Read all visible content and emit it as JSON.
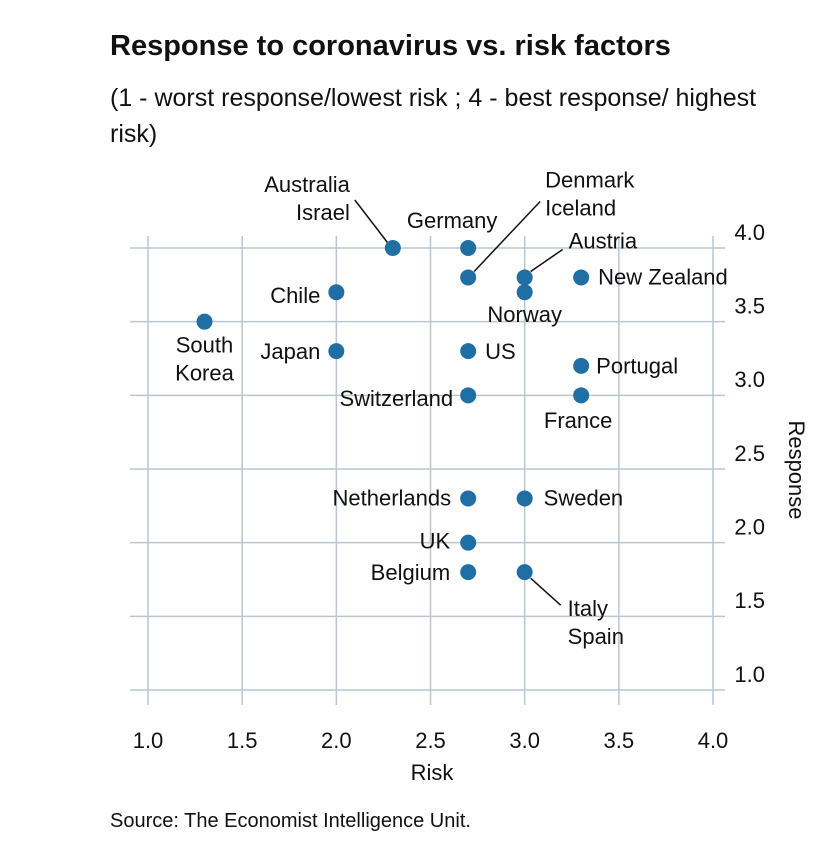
{
  "chart_data": {
    "type": "scatter",
    "title": "Response to coronavirus vs. risk factors",
    "subtitle": "(1 - worst response/lowest risk ; 4 - best response/ highest risk)",
    "x_label": "Risk",
    "y_label": "Response",
    "source": "Source: The Economist Intelligence Unit.",
    "color": "#1f6fa5",
    "grid": true,
    "xlim": [
      1.0,
      4.0
    ],
    "ylim": [
      1.0,
      4.0
    ],
    "xticks": [
      {
        "value": 1.0,
        "label": "1.0"
      },
      {
        "value": 1.5,
        "label": "1.5"
      },
      {
        "value": 2.0,
        "label": "2.0"
      },
      {
        "value": 2.5,
        "label": "2.5"
      },
      {
        "value": 3.0,
        "label": "3.0"
      },
      {
        "value": 3.5,
        "label": "3.5"
      },
      {
        "value": 4.0,
        "label": "4.0"
      }
    ],
    "yticks": [
      {
        "value": 1.0,
        "label": "1.0"
      },
      {
        "value": 1.5,
        "label": "1.5"
      },
      {
        "value": 2.0,
        "label": "2.0"
      },
      {
        "value": 2.5,
        "label": "2.5"
      },
      {
        "value": 3.0,
        "label": "3.0"
      },
      {
        "value": 3.5,
        "label": "3.5"
      },
      {
        "value": 4.0,
        "label": "4.0"
      }
    ],
    "point_labels": [
      [
        "Australia",
        "Israel"
      ],
      [
        "Germany"
      ],
      [
        "Denmark",
        "Iceland"
      ],
      [
        "Austria"
      ],
      [
        "New Zealand"
      ],
      [
        "Norway"
      ],
      [
        "Chile"
      ],
      [
        "South",
        "Korea"
      ],
      [
        "Japan"
      ],
      [
        "US"
      ],
      [
        "Portugal"
      ],
      [
        "Switzerland"
      ],
      [
        "France"
      ],
      [
        "Netherlands"
      ],
      [
        "Sweden"
      ],
      [
        "UK"
      ],
      [
        "Belgium"
      ],
      [
        "Italy",
        "Spain"
      ]
    ],
    "x": [
      2.3,
      2.7,
      2.7,
      3.0,
      3.3,
      3.0,
      2.0,
      1.3,
      2.0,
      2.7,
      3.3,
      2.7,
      3.3,
      2.7,
      3.0,
      2.7,
      2.7,
      3.0
    ],
    "y": [
      4.0,
      4.0,
      3.8,
      3.8,
      3.8,
      3.7,
      3.7,
      3.5,
      3.3,
      3.3,
      3.2,
      3.0,
      3.0,
      2.3,
      2.3,
      2.0,
      1.8,
      1.8
    ]
  }
}
